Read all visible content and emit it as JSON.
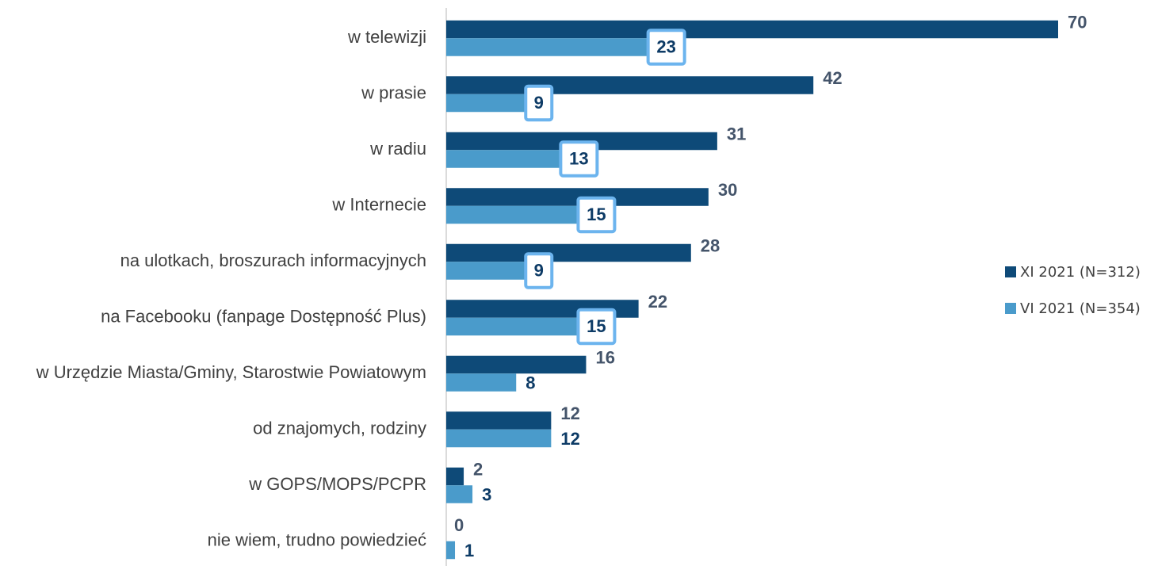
{
  "chart_data": {
    "type": "bar",
    "orientation": "horizontal",
    "categories": [
      "w telewizji",
      "w prasie",
      "w radiu",
      "w Internecie",
      "na ulotkach, broszurach informacyjnych",
      "na Facebooku (fanpage Dostępność Plus)",
      "w Urzędzie Miasta/Gminy, Starostwie Powiatowym",
      "od znajomych, rodziny",
      "w GOPS/MOPS/PCPR",
      "nie wiem, trudno powiedzieć"
    ],
    "series": [
      {
        "name": "XI 2021 (N=312)",
        "color": "#0e4a78",
        "label_color": "#44546a",
        "values": [
          70,
          42,
          31,
          30,
          28,
          22,
          16,
          12,
          2,
          0
        ]
      },
      {
        "name": "VI 2021 (N=354)",
        "color": "#4a9bcb",
        "label_color": "#0d3b66",
        "values": [
          23,
          9,
          13,
          15,
          9,
          15,
          8,
          12,
          3,
          1
        ]
      }
    ],
    "legend": "right"
  }
}
